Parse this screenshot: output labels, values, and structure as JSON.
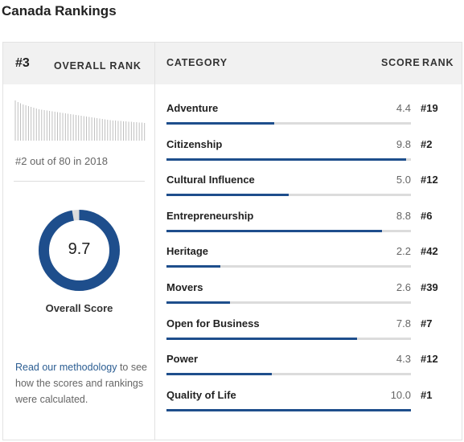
{
  "title": "Canada Rankings",
  "overall": {
    "rank": "#3",
    "rank_label": "OVERALL RANK",
    "out_of": "#2 out of 80 in 2018",
    "score": "9.7",
    "score_fraction": 0.97,
    "score_label": "Overall Score",
    "methodology_link": "Read our methodology",
    "methodology_rest": " to see how the scores and rankings were calculated."
  },
  "headers": {
    "category": "CATEGORY",
    "score": "SCORE",
    "rank": "RANK"
  },
  "categories": [
    {
      "name": "Adventure",
      "score": "4.4",
      "rank": "#19",
      "fill": 0.44
    },
    {
      "name": "Citizenship",
      "score": "9.8",
      "rank": "#2",
      "fill": 0.98
    },
    {
      "name": "Cultural Influence",
      "score": "5.0",
      "rank": "#12",
      "fill": 0.5
    },
    {
      "name": "Entrepreneurship",
      "score": "8.8",
      "rank": "#6",
      "fill": 0.88
    },
    {
      "name": "Heritage",
      "score": "2.2",
      "rank": "#42",
      "fill": 0.22
    },
    {
      "name": "Movers",
      "score": "2.6",
      "rank": "#39",
      "fill": 0.26
    },
    {
      "name": "Open for Business",
      "score": "7.8",
      "rank": "#7",
      "fill": 0.78
    },
    {
      "name": "Power",
      "score": "4.3",
      "rank": "#12",
      "fill": 0.43
    },
    {
      "name": "Quality of Life",
      "score": "10.0",
      "rank": "#1",
      "fill": 1.0
    }
  ],
  "colors": {
    "accent": "#1e4e8c",
    "link": "#2b5d92",
    "track": "#dcdcdc",
    "header_bg": "#f1f1f1"
  },
  "sparkline_levels": [
    1.0,
    0.96,
    0.93,
    0.9,
    0.88,
    0.86,
    0.84,
    0.82,
    0.8,
    0.78,
    0.77,
    0.76,
    0.75,
    0.74,
    0.73,
    0.72,
    0.71,
    0.7,
    0.69,
    0.68,
    0.67,
    0.66,
    0.65,
    0.64,
    0.63,
    0.62,
    0.61,
    0.6,
    0.59,
    0.58,
    0.57,
    0.56,
    0.55,
    0.54,
    0.53,
    0.52,
    0.51,
    0.5,
    0.5,
    0.49,
    0.49,
    0.48,
    0.48,
    0.47,
    0.47,
    0.46,
    0.46,
    0.45,
    0.45,
    0.44
  ]
}
